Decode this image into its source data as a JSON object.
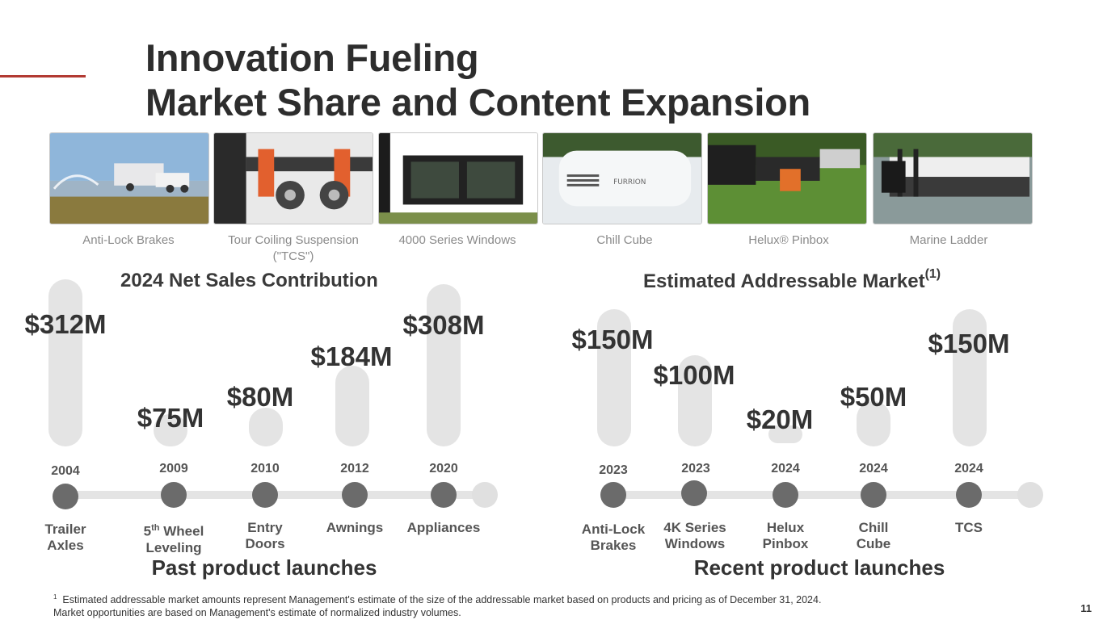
{
  "page": {
    "title_line1": "Innovation Fueling",
    "title_line2": "Market Share and Content Expansion",
    "accent_color": "#b23a32",
    "page_number": "11"
  },
  "products": [
    {
      "caption": "Anti-Lock Brakes",
      "icon": "rv-truck-photo"
    },
    {
      "caption": "Tour Coiling Suspension (\"TCS\")",
      "icon": "suspension-photo"
    },
    {
      "caption": "4000 Series Windows",
      "icon": "windows-photo"
    },
    {
      "caption": "Chill Cube",
      "icon": "air-conditioner-photo"
    },
    {
      "caption": "Helux® Pinbox",
      "icon": "pinbox-photo"
    },
    {
      "caption": "Marine Ladder",
      "icon": "boat-photo"
    }
  ],
  "net_sales": {
    "title": "2024 Net Sales Contribution",
    "launch_title": "Past product launches",
    "items": [
      {
        "value": "$312M",
        "year": "2004",
        "label": "Trailer Axles",
        "label_line1": "Trailer",
        "label_line2": "Axles"
      },
      {
        "value": "$75M",
        "year": "2009",
        "label": "5th Wheel Leveling",
        "label_line1_base": "5",
        "label_line1_sup": "th",
        "label_line1_rest": " Wheel",
        "label_line2": "Leveling"
      },
      {
        "value": "$80M",
        "year": "2010",
        "label": "Entry Doors",
        "label_line1": "Entry",
        "label_line2": "Doors"
      },
      {
        "value": "$184M",
        "year": "2012",
        "label": "Awnings",
        "label_line1": "Awnings",
        "label_line2": ""
      },
      {
        "value": "$308M",
        "year": "2020",
        "label": "Appliances",
        "label_line1": "Appliances",
        "label_line2": ""
      }
    ]
  },
  "addressable_market": {
    "title": "Estimated Addressable Market",
    "title_footnote_marker": "(1)",
    "launch_title": "Recent product launches",
    "items": [
      {
        "value": "$150M",
        "year": "2023",
        "label": "Anti-Lock Brakes",
        "label_line1": "Anti-Lock",
        "label_line2": "Brakes"
      },
      {
        "value": "$100M",
        "year": "2023",
        "label": "4K Series Windows",
        "label_line1": "4K Series",
        "label_line2": "Windows"
      },
      {
        "value": "$20M",
        "year": "2024",
        "label": "Helux Pinbox",
        "label_line1": "Helux",
        "label_line2": "Pinbox"
      },
      {
        "value": "$50M",
        "year": "2024",
        "label": "Chill Cube",
        "label_line1": "Chill",
        "label_line2": "Cube"
      },
      {
        "value": "$150M",
        "year": "2024",
        "label": "TCS",
        "label_line1": "TCS",
        "label_line2": ""
      }
    ]
  },
  "footnote": {
    "marker": "1",
    "line1": "Estimated addressable market amounts represent Management's estimate of the size of the addressable market based on products and pricing as of December 31, 2024.",
    "line2": "Market opportunities are based on Management's estimate of normalized industry volumes."
  }
}
